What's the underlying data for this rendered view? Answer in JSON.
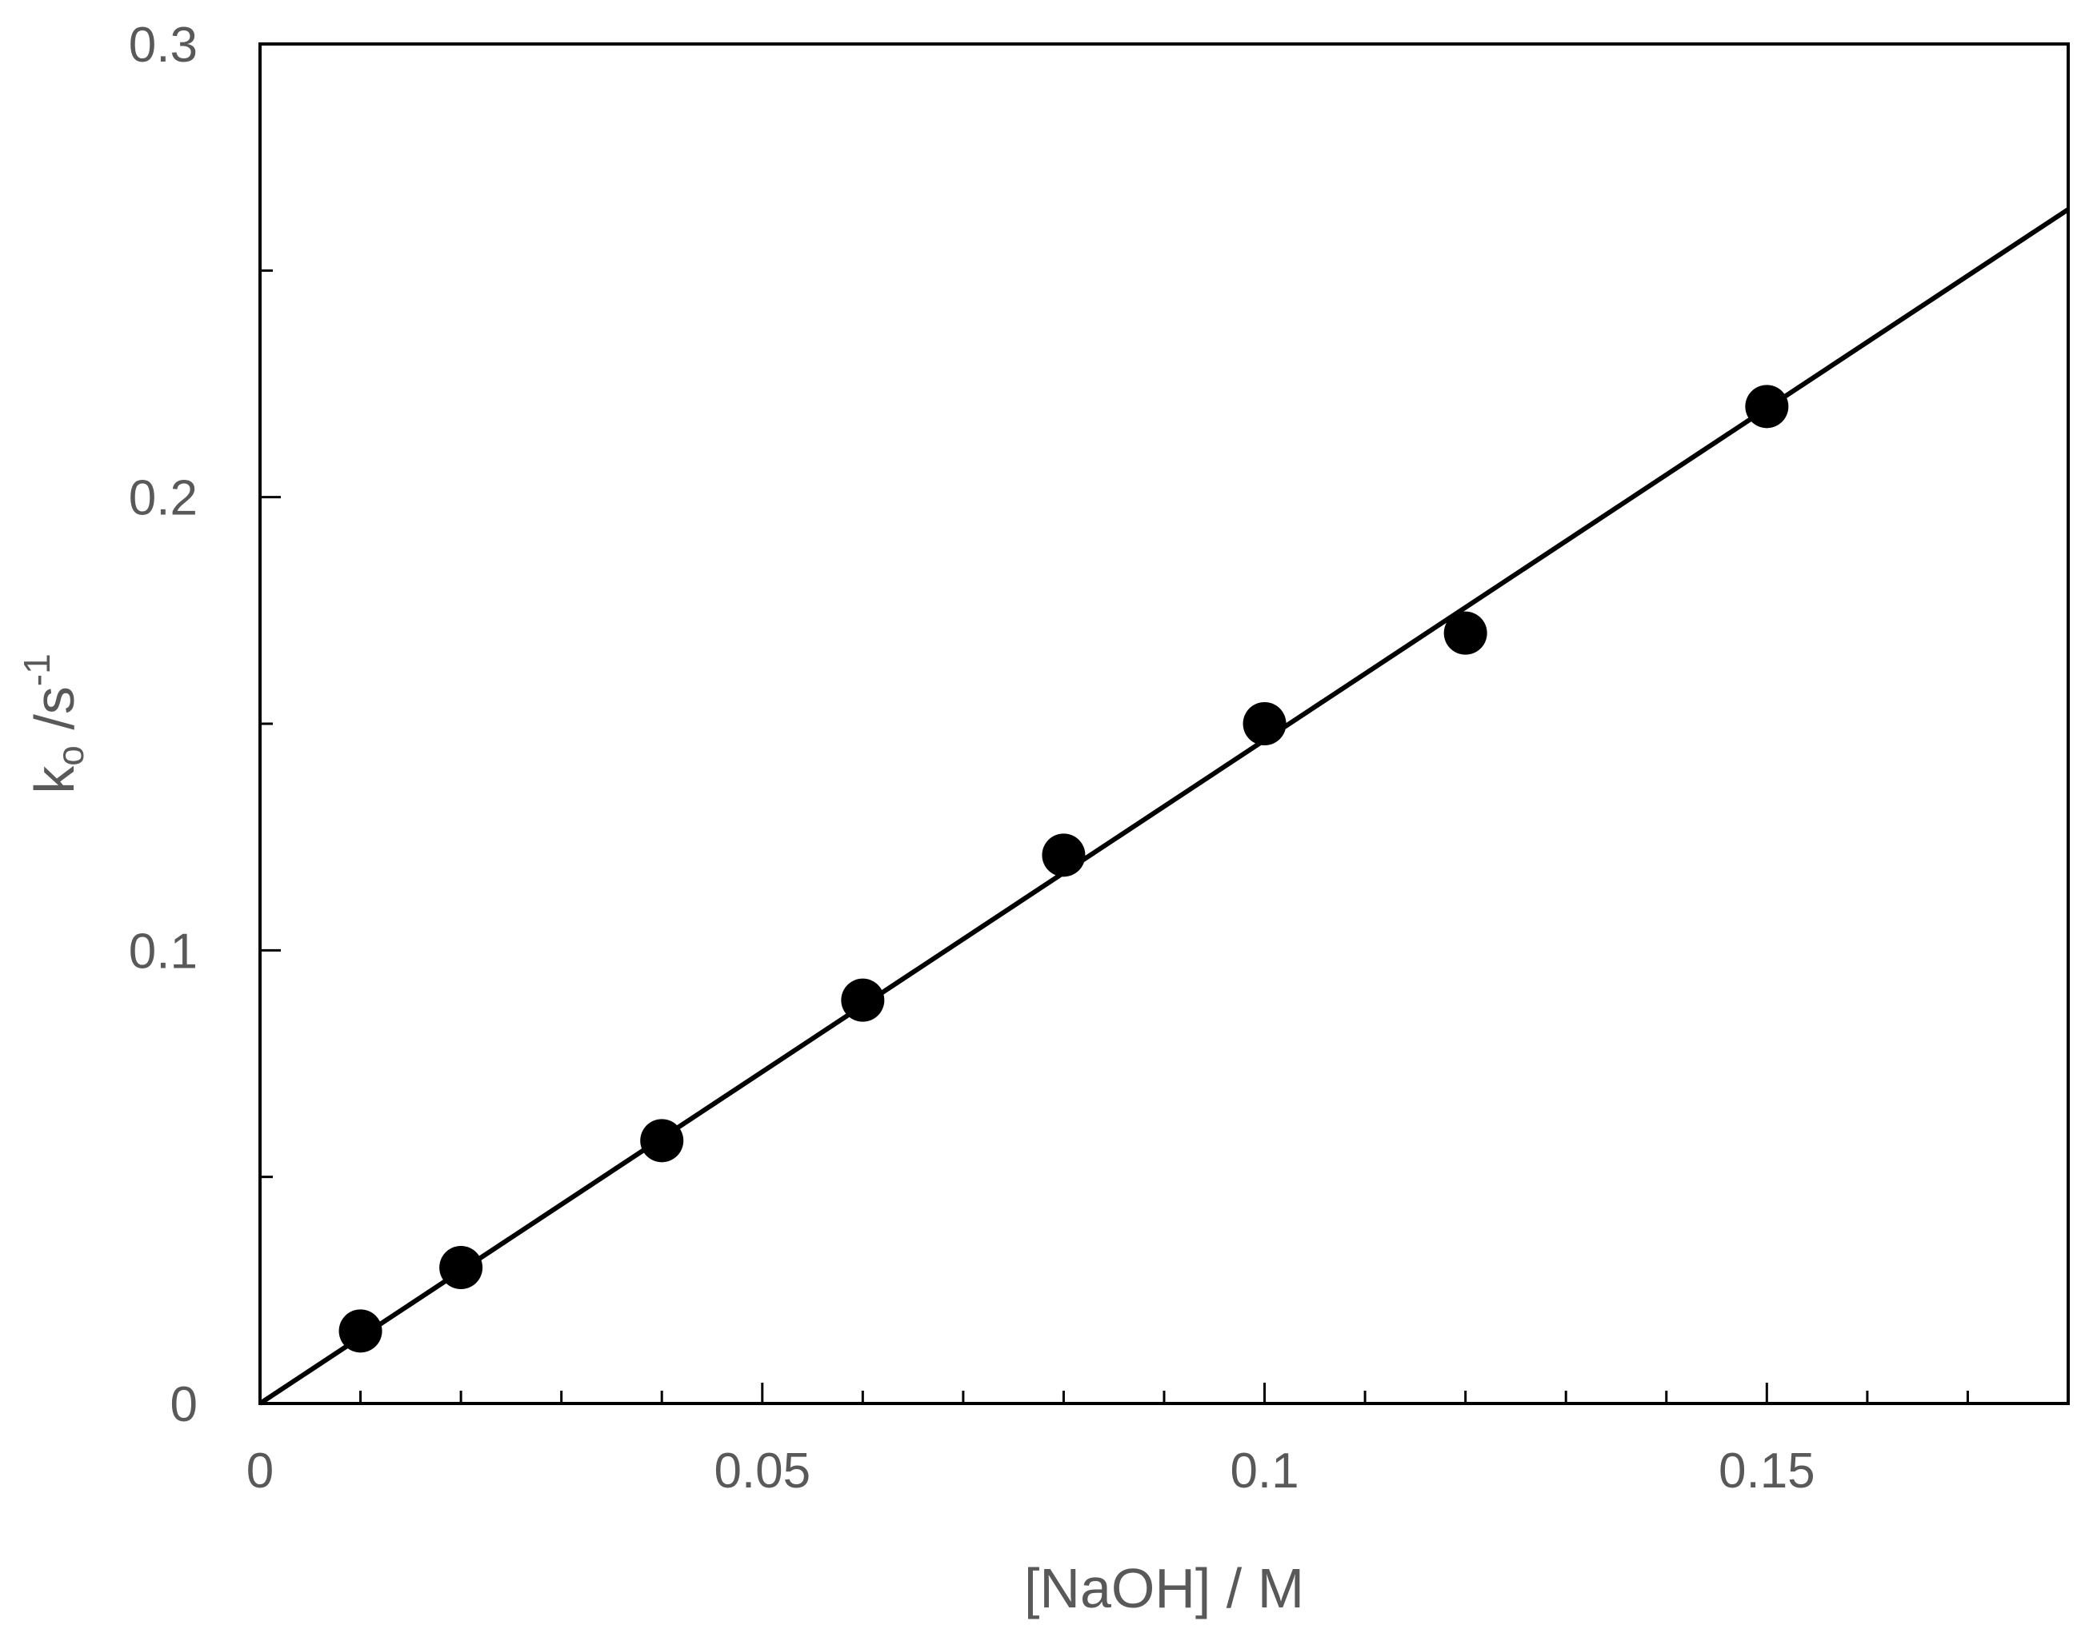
{
  "chart_data": {
    "type": "scatter",
    "title": "",
    "xlabel": "[NaOH] / M",
    "ylabel": {
      "base": "k",
      "subscript": "o",
      "middle": " /s",
      "superscript": "-1"
    },
    "xlim": [
      0,
      0.18
    ],
    "ylim": [
      0,
      0.3
    ],
    "x_major_ticks": [
      0,
      0.05,
      0.1,
      0.15
    ],
    "x_major_tick_labels": [
      "0",
      "0.05",
      "0.1",
      "0.15"
    ],
    "x_minor_tick_step": 0.01,
    "y_major_ticks": [
      0,
      0.1,
      0.2,
      0.3
    ],
    "y_major_tick_labels": [
      "0",
      "0.1",
      "0.2",
      "0.3"
    ],
    "y_minor_tick_step": 0.05,
    "grid": false,
    "legend": "none",
    "series": [
      {
        "marker": "circle",
        "color": "#000000",
        "x": [
          0.01,
          0.02,
          0.04,
          0.06,
          0.08,
          0.1,
          0.12,
          0.15
        ],
        "y": [
          0.016,
          0.03,
          0.058,
          0.089,
          0.121,
          0.15,
          0.17,
          0.22
        ]
      }
    ],
    "fit_line": {
      "color": "#000000",
      "x": [
        0,
        0.18
      ],
      "y": [
        0,
        0.2635
      ]
    }
  }
}
